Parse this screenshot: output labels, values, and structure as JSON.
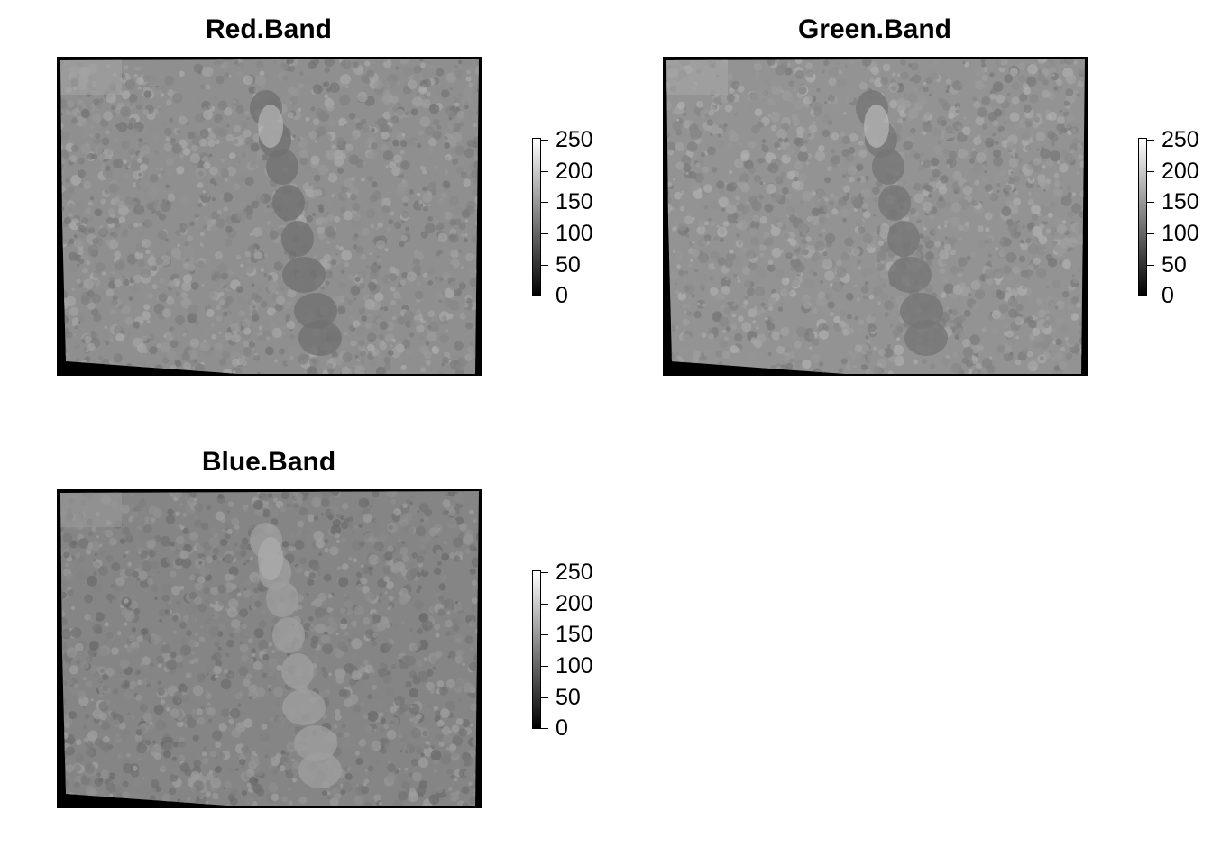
{
  "chart_data": [
    {
      "type": "heatmap",
      "title": "Red.Band",
      "zlim": [
        0,
        255
      ],
      "colorbar": {
        "ticks": [
          0,
          50,
          100,
          150,
          200,
          250
        ],
        "labels": [
          "0",
          "50",
          "100",
          "150",
          "200",
          "250"
        ],
        "colormap": "grayscale"
      },
      "base_gray": "#8f8f8f",
      "channel": "red"
    },
    {
      "type": "heatmap",
      "title": "Green.Band",
      "zlim": [
        0,
        255
      ],
      "colorbar": {
        "ticks": [
          0,
          50,
          100,
          150,
          200,
          250
        ],
        "labels": [
          "0",
          "50",
          "100",
          "150",
          "200",
          "250"
        ],
        "colormap": "grayscale"
      },
      "base_gray": "#939393",
      "channel": "green"
    },
    {
      "type": "heatmap",
      "title": "Blue.Band",
      "zlim": [
        0,
        255
      ],
      "colorbar": {
        "ticks": [
          0,
          50,
          100,
          150,
          200,
          250
        ],
        "labels": [
          "0",
          "50",
          "100",
          "150",
          "200",
          "250"
        ],
        "colormap": "grayscale"
      },
      "base_gray": "#858585",
      "channel": "blue"
    }
  ]
}
